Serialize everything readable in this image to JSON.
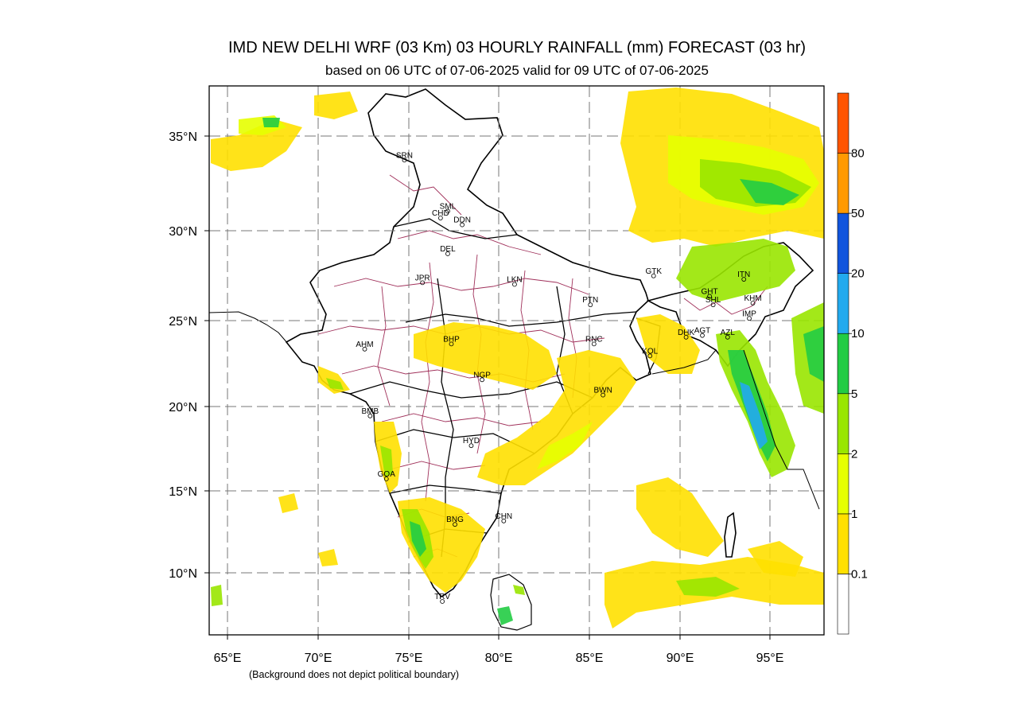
{
  "title": "IMD NEW DELHI  WRF (03 Km) 03 HOURLY RAINFALL (mm) FORECAST  (03 hr)",
  "subtitle": "based on 06 UTC of 07-06-2025 valid for 09 UTC of 07-06-2025",
  "footnote": "(Background does not depict political boundary)",
  "axes": {
    "lon_ticks": [
      "65°E",
      "70°E",
      "75°E",
      "80°E",
      "85°E",
      "90°E",
      "95°E"
    ],
    "lat_ticks": [
      "35°N",
      "30°N",
      "25°N",
      "20°N",
      "15°N",
      "10°N"
    ],
    "lon_range": [
      64,
      98
    ],
    "lat_range": [
      6.5,
      37.5
    ]
  },
  "colorbar": {
    "levels": [
      "0.1",
      "1",
      "2",
      "5",
      "10",
      "20",
      "50",
      "80"
    ],
    "colors": [
      "#ffffff",
      "#ffe000",
      "#e6ff00",
      "#99e600",
      "#22cc44",
      "#22aaee",
      "#1155dd",
      "#ff9a00",
      "#ff5500"
    ]
  },
  "cities": [
    {
      "code": "SRN",
      "lon": 74.8,
      "lat": 34.1
    },
    {
      "code": "SML",
      "lon": 77.2,
      "lat": 31.1
    },
    {
      "code": "CHD",
      "lon": 76.8,
      "lat": 30.7
    },
    {
      "code": "DDN",
      "lon": 78.0,
      "lat": 30.3
    },
    {
      "code": "DEL",
      "lon": 77.2,
      "lat": 28.6
    },
    {
      "code": "JPR",
      "lon": 75.8,
      "lat": 26.9
    },
    {
      "code": "LKN",
      "lon": 80.9,
      "lat": 26.8
    },
    {
      "code": "PTN",
      "lon": 85.1,
      "lat": 25.6
    },
    {
      "code": "GTK",
      "lon": 88.6,
      "lat": 27.3
    },
    {
      "code": "ITN",
      "lon": 93.6,
      "lat": 27.1
    },
    {
      "code": "GHT",
      "lon": 91.7,
      "lat": 26.1
    },
    {
      "code": "SHL",
      "lon": 91.9,
      "lat": 25.6
    },
    {
      "code": "KHM",
      "lon": 94.1,
      "lat": 25.7
    },
    {
      "code": "IMP",
      "lon": 93.9,
      "lat": 24.8
    },
    {
      "code": "AGT",
      "lon": 91.3,
      "lat": 23.8
    },
    {
      "code": "AZL",
      "lon": 92.7,
      "lat": 23.7
    },
    {
      "code": "DHK",
      "lon": 90.4,
      "lat": 23.7
    },
    {
      "code": "RNC",
      "lon": 85.3,
      "lat": 23.3
    },
    {
      "code": "KOL",
      "lon": 88.4,
      "lat": 22.6
    },
    {
      "code": "BHP",
      "lon": 77.4,
      "lat": 23.3
    },
    {
      "code": "AHM",
      "lon": 72.6,
      "lat": 23.0
    },
    {
      "code": "NGP",
      "lon": 79.1,
      "lat": 21.2
    },
    {
      "code": "BWN",
      "lon": 85.8,
      "lat": 20.3
    },
    {
      "code": "BMB",
      "lon": 72.9,
      "lat": 19.1
    },
    {
      "code": "HYD",
      "lon": 78.5,
      "lat": 17.4
    },
    {
      "code": "GOA",
      "lon": 73.8,
      "lat": 15.5
    },
    {
      "code": "CHN",
      "lon": 80.3,
      "lat": 13.1
    },
    {
      "code": "BNG",
      "lon": 77.6,
      "lat": 12.9
    },
    {
      "code": "TRV",
      "lon": 76.9,
      "lat": 8.5
    }
  ]
}
